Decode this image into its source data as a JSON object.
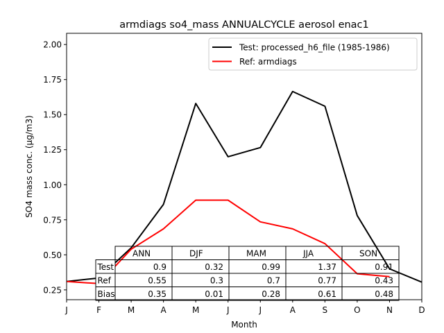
{
  "chart_data": {
    "type": "line",
    "title": "armdiags so4_mass ANNUALCYCLE aerosol enac1",
    "xlabel": "Month",
    "ylabel": "SO4 mass conc. (µg/m3)",
    "categories": [
      "J",
      "F",
      "M",
      "A",
      "M",
      "J",
      "J",
      "A",
      "S",
      "O",
      "N",
      "D"
    ],
    "ylim": [
      0.18,
      2.08
    ],
    "yticks": [
      "0.25",
      "0.50",
      "0.75",
      "1.00",
      "1.25",
      "1.50",
      "1.75",
      "2.00"
    ],
    "ytick_values": [
      0.25,
      0.5,
      0.75,
      1.0,
      1.25,
      1.5,
      1.75,
      2.0
    ],
    "legend_position": "top-right",
    "series": [
      {
        "name": "Test: processed_h6_file (1985-1986)",
        "color": "#000000",
        "values": [
          0.31,
          0.335,
          0.55,
          0.86,
          1.58,
          1.2,
          1.265,
          1.665,
          1.56,
          0.78,
          0.4,
          0.305
        ]
      },
      {
        "name": "Ref: armdiags",
        "color": "#ff0000",
        "values": [
          0.31,
          0.295,
          0.54,
          0.685,
          0.89,
          0.89,
          0.735,
          0.685,
          0.58,
          0.365,
          0.345,
          null
        ]
      }
    ],
    "table": {
      "columns": [
        "ANN",
        "DJF",
        "MAM",
        "JJA",
        "SON"
      ],
      "rows": [
        {
          "label": "Test",
          "values": [
            "0.9",
            "0.32",
            "0.99",
            "1.37",
            "0.91"
          ]
        },
        {
          "label": "Ref",
          "values": [
            "0.55",
            "0.3",
            "0.7",
            "0.77",
            "0.43"
          ]
        },
        {
          "label": "Bias",
          "values": [
            "0.35",
            "0.01",
            "0.28",
            "0.61",
            "0.48"
          ]
        }
      ]
    }
  }
}
